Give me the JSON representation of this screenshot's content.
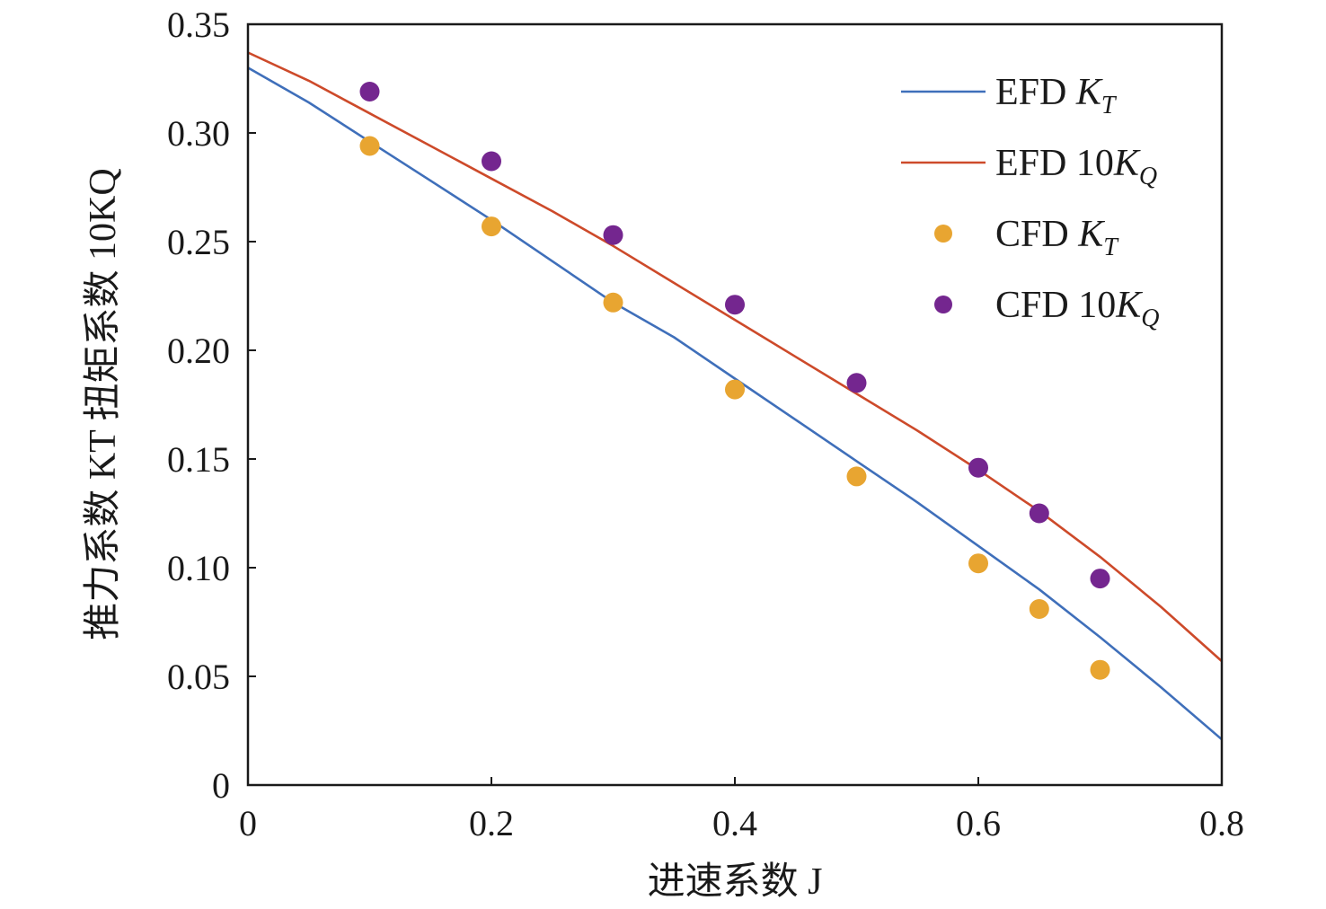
{
  "chart_data": {
    "type": "line",
    "xlabel": "进速系数 J",
    "ylabel": "推力系数 KT 扭矩系数 10KQ",
    "xlim": [
      0,
      0.8
    ],
    "ylim": [
      0,
      0.35
    ],
    "x_ticks": [
      "0",
      "0.2",
      "0.4",
      "0.6",
      "0.8"
    ],
    "y_ticks": [
      "0",
      "0.05",
      "0.10",
      "0.15",
      "0.20",
      "0.25",
      "0.30",
      "0.35"
    ],
    "legend_position": "top-right",
    "grid": false,
    "series": [
      {
        "name": "EFD KT",
        "legend_main": "EFD ",
        "legend_italic": "K",
        "legend_sub": "T",
        "style": "line",
        "color": "#3f6fba",
        "x": [
          0,
          0.05,
          0.1,
          0.15,
          0.2,
          0.25,
          0.3,
          0.35,
          0.4,
          0.45,
          0.5,
          0.55,
          0.6,
          0.65,
          0.7,
          0.75,
          0.8
        ],
        "y": [
          0.33,
          0.314,
          0.296,
          0.278,
          0.26,
          0.241,
          0.222,
          0.206,
          0.187,
          0.168,
          0.149,
          0.13,
          0.11,
          0.09,
          0.068,
          0.045,
          0.021
        ]
      },
      {
        "name": "EFD 10KQ",
        "legend_main": "EFD 10",
        "legend_italic": "K",
        "legend_sub": "Q",
        "style": "line",
        "color": "#cd4a2a",
        "x": [
          0,
          0.05,
          0.1,
          0.15,
          0.2,
          0.25,
          0.3,
          0.35,
          0.4,
          0.45,
          0.5,
          0.55,
          0.6,
          0.65,
          0.7,
          0.75,
          0.8
        ],
        "y": [
          0.337,
          0.324,
          0.309,
          0.294,
          0.279,
          0.264,
          0.248,
          0.231,
          0.214,
          0.197,
          0.18,
          0.163,
          0.145,
          0.126,
          0.105,
          0.082,
          0.057
        ]
      },
      {
        "name": "CFD KT",
        "legend_main": "CFD ",
        "legend_italic": "K",
        "legend_sub": "T",
        "style": "scatter",
        "color": "#e8a531",
        "x": [
          0.1,
          0.2,
          0.3,
          0.4,
          0.5,
          0.6,
          0.65,
          0.7
        ],
        "y": [
          0.294,
          0.257,
          0.222,
          0.182,
          0.142,
          0.102,
          0.081,
          0.053
        ]
      },
      {
        "name": "CFD 10KQ",
        "legend_main": "CFD 10",
        "legend_italic": "K",
        "legend_sub": "Q",
        "style": "scatter",
        "color": "#74268f",
        "x": [
          0.1,
          0.2,
          0.3,
          0.4,
          0.5,
          0.6,
          0.65,
          0.7
        ],
        "y": [
          0.319,
          0.287,
          0.253,
          0.221,
          0.185,
          0.146,
          0.125,
          0.095
        ]
      }
    ]
  }
}
